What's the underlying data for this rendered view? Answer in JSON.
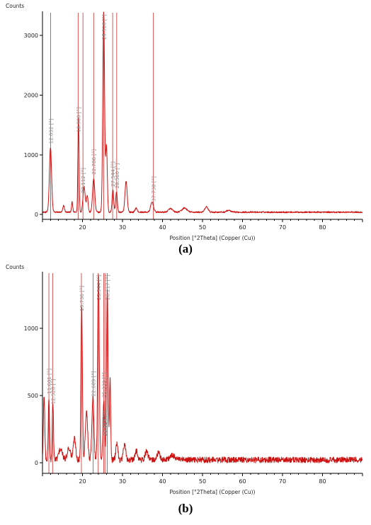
{
  "chart_data": [
    {
      "id": "a",
      "type": "line",
      "panel_caption": "(a)",
      "ylabel": "Counts",
      "xlabel": "Position [°2Theta] (Copper (Cu))",
      "xlim": [
        10,
        90
      ],
      "ylim": [
        -80,
        3400
      ],
      "xticks": [
        20,
        30,
        40,
        50,
        60,
        70,
        80
      ],
      "yticks": [
        0,
        1000,
        2000,
        3000
      ],
      "grid": false,
      "color": "#cc1111",
      "baseline": 40,
      "peaks": [
        {
          "x": 12.0,
          "y": 1080,
          "w": 0.55
        },
        {
          "x": 15.3,
          "y": 110,
          "w": 0.4
        },
        {
          "x": 17.4,
          "y": 170,
          "w": 0.3
        },
        {
          "x": 19.0,
          "y": 1580,
          "w": 0.3
        },
        {
          "x": 20.4,
          "y": 430,
          "w": 0.55
        },
        {
          "x": 21.2,
          "y": 280,
          "w": 0.4
        },
        {
          "x": 22.8,
          "y": 560,
          "w": 0.55
        },
        {
          "x": 25.3,
          "y": 3350,
          "w": 0.45
        },
        {
          "x": 26.0,
          "y": 1100,
          "w": 0.4
        },
        {
          "x": 27.6,
          "y": 370,
          "w": 0.4
        },
        {
          "x": 28.5,
          "y": 340,
          "w": 0.4
        },
        {
          "x": 30.9,
          "y": 520,
          "w": 0.55
        },
        {
          "x": 33.4,
          "y": 70,
          "w": 0.5
        },
        {
          "x": 37.4,
          "y": 170,
          "w": 0.7
        },
        {
          "x": 42.0,
          "y": 60,
          "w": 1.0
        },
        {
          "x": 45.5,
          "y": 70,
          "w": 1.2
        },
        {
          "x": 51.0,
          "y": 90,
          "w": 0.8
        },
        {
          "x": 56.5,
          "y": 30,
          "w": 1.0
        }
      ],
      "noise": 12,
      "peak_labels": [
        {
          "x": 12.032,
          "text": "12.032 [°]"
        },
        {
          "x": 18.9,
          "text": "18.900 [°]"
        },
        {
          "x": 20.112,
          "text": "20.112 [°]"
        },
        {
          "x": 22.788,
          "text": "22.788 [°]"
        },
        {
          "x": 25.316,
          "text": "25.316 [°]"
        },
        {
          "x": 27.544,
          "text": "27.544 [°]"
        },
        {
          "x": 28.56,
          "text": "28.560 [°]"
        },
        {
          "x": 37.738,
          "text": "37.738 [°]"
        }
      ]
    },
    {
      "id": "b",
      "type": "line",
      "panel_caption": "(b)",
      "ylabel": "Counts",
      "xlabel": "Position [°2Theta] (Copper (Cu))",
      "xlim": [
        10,
        90
      ],
      "ylim": [
        -80,
        1420
      ],
      "xticks": [
        20,
        30,
        40,
        50,
        60,
        70,
        80
      ],
      "yticks": [
        0,
        500,
        1000
      ],
      "grid": false,
      "color": "#cc1111",
      "baseline": 20,
      "peaks": [
        {
          "x": 10.4,
          "y": 480,
          "w": 0.35
        },
        {
          "x": 11.6,
          "y": 460,
          "w": 0.3
        },
        {
          "x": 12.6,
          "y": 430,
          "w": 0.3
        },
        {
          "x": 14.5,
          "y": 80,
          "w": 0.9
        },
        {
          "x": 16.6,
          "y": 90,
          "w": 0.8
        },
        {
          "x": 18.0,
          "y": 160,
          "w": 0.6
        },
        {
          "x": 19.8,
          "y": 1150,
          "w": 0.35
        },
        {
          "x": 21.0,
          "y": 360,
          "w": 0.6
        },
        {
          "x": 22.6,
          "y": 470,
          "w": 0.5
        },
        {
          "x": 24.0,
          "y": 1400,
          "w": 0.4
        },
        {
          "x": 25.3,
          "y": 440,
          "w": 0.4
        },
        {
          "x": 26.2,
          "y": 1270,
          "w": 0.4
        },
        {
          "x": 26.9,
          "y": 600,
          "w": 0.3
        },
        {
          "x": 28.6,
          "y": 130,
          "w": 0.5
        },
        {
          "x": 30.5,
          "y": 110,
          "w": 0.6
        },
        {
          "x": 33.5,
          "y": 70,
          "w": 0.6
        },
        {
          "x": 36.0,
          "y": 60,
          "w": 0.7
        },
        {
          "x": 39.0,
          "y": 50,
          "w": 0.8
        },
        {
          "x": 42.5,
          "y": 30,
          "w": 1.5
        }
      ],
      "noise": 22,
      "peak_labels": [
        {
          "x": 11.601,
          "text": "11.601 [°]"
        },
        {
          "x": 12.528,
          "text": "12.528 [°]"
        },
        {
          "x": 19.736,
          "text": "19.736 [°]"
        },
        {
          "x": 22.689,
          "text": "22.689 [°]"
        },
        {
          "x": 23.944,
          "text": "23.944 [°]"
        },
        {
          "x": 25.339,
          "text": "25.339 [°]"
        },
        {
          "x": 25.614,
          "text": "25.614 [°]"
        },
        {
          "x": 26.217,
          "text": "26.217 [°]"
        }
      ]
    }
  ]
}
